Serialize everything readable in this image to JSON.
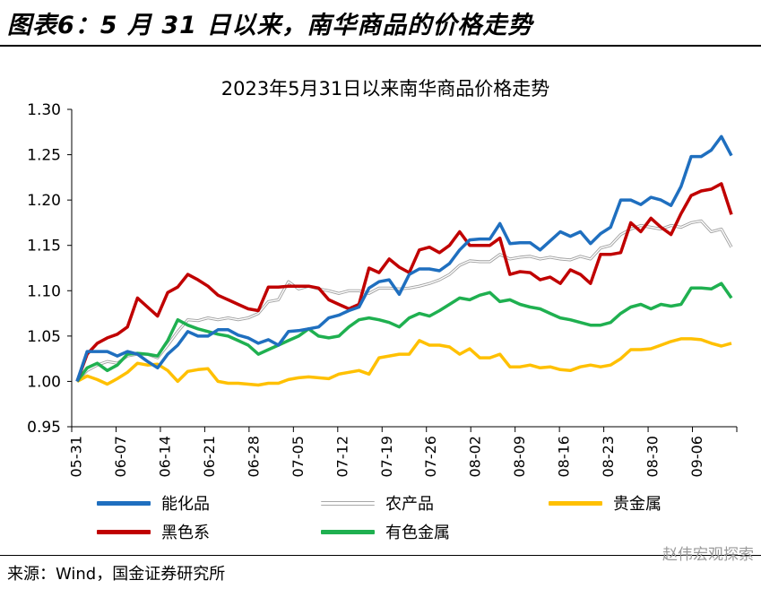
{
  "page": {
    "header_title": "图表6：5 月 31 日以来，南华商品的价格走势",
    "source": "来源：Wind，国金证券研究所",
    "watermark": "赵伟宏观探索"
  },
  "chart_data": {
    "type": "line",
    "title": "2023年5月31日以来南华商品价格走势",
    "xlabel": "",
    "ylabel": "",
    "ylim": [
      0.95,
      1.3
    ],
    "yticks": [
      "1.30",
      "1.25",
      "1.20",
      "1.15",
      "1.10",
      "1.05",
      "1.00",
      "0.95"
    ],
    "xtick_labels": [
      "05-31",
      "06-07",
      "06-14",
      "06-21",
      "06-28",
      "07-05",
      "07-12",
      "07-19",
      "07-26",
      "08-02",
      "08-09",
      "08-16",
      "08-23",
      "08-30",
      "09-06"
    ],
    "grid": false,
    "legend_position": "bottom",
    "series": [
      {
        "name": "能化品",
        "color": "#1f6fbf",
        "values": [
          1.0,
          1.033,
          1.033,
          1.033,
          1.028,
          1.033,
          1.03,
          1.022,
          1.015,
          1.03,
          1.04,
          1.055,
          1.05,
          1.05,
          1.057,
          1.057,
          1.051,
          1.048,
          1.042,
          1.046,
          1.04,
          1.055,
          1.056,
          1.058,
          1.06,
          1.07,
          1.073,
          1.078,
          1.082,
          1.103,
          1.11,
          1.112,
          1.096,
          1.118,
          1.124,
          1.124,
          1.122,
          1.13,
          1.145,
          1.156,
          1.157,
          1.157,
          1.174,
          1.152,
          1.153,
          1.153,
          1.145,
          1.155,
          1.165,
          1.16,
          1.165,
          1.152,
          1.163,
          1.17,
          1.2,
          1.2,
          1.195,
          1.203,
          1.2,
          1.194,
          1.215,
          1.248,
          1.248,
          1.255,
          1.27,
          1.249
        ]
      },
      {
        "name": "农产品",
        "color": "#bdbdbd",
        "values": [
          1.0,
          1.012,
          1.018,
          1.022,
          1.02,
          1.028,
          1.03,
          1.03,
          1.026,
          1.04,
          1.055,
          1.068,
          1.067,
          1.07,
          1.068,
          1.07,
          1.068,
          1.07,
          1.075,
          1.088,
          1.09,
          1.11,
          1.102,
          1.105,
          1.102,
          1.1,
          1.097,
          1.1,
          1.1,
          1.097,
          1.103,
          1.103,
          1.102,
          1.103,
          1.105,
          1.108,
          1.112,
          1.118,
          1.128,
          1.133,
          1.132,
          1.132,
          1.14,
          1.135,
          1.137,
          1.138,
          1.135,
          1.137,
          1.135,
          1.134,
          1.138,
          1.135,
          1.147,
          1.15,
          1.162,
          1.168,
          1.172,
          1.17,
          1.168,
          1.172,
          1.17,
          1.175,
          1.177,
          1.165,
          1.168,
          1.148
        ]
      },
      {
        "name": "贵金属",
        "color": "#ffc000",
        "values": [
          1.0,
          1.006,
          1.002,
          0.997,
          1.003,
          1.01,
          1.02,
          1.018,
          1.019,
          1.012,
          1.0,
          1.011,
          1.013,
          1.014,
          1.0,
          0.998,
          0.998,
          0.997,
          0.996,
          0.998,
          0.998,
          1.002,
          1.004,
          1.005,
          1.004,
          1.003,
          1.008,
          1.01,
          1.012,
          1.008,
          1.026,
          1.028,
          1.03,
          1.03,
          1.045,
          1.04,
          1.04,
          1.038,
          1.03,
          1.036,
          1.026,
          1.026,
          1.03,
          1.016,
          1.016,
          1.018,
          1.015,
          1.016,
          1.013,
          1.012,
          1.016,
          1.018,
          1.016,
          1.018,
          1.025,
          1.035,
          1.035,
          1.036,
          1.04,
          1.044,
          1.047,
          1.047,
          1.046,
          1.042,
          1.039,
          1.042
        ]
      },
      {
        "name": "黑色系",
        "color": "#c00000",
        "values": [
          1.0,
          1.03,
          1.042,
          1.048,
          1.052,
          1.06,
          1.092,
          1.082,
          1.072,
          1.098,
          1.104,
          1.118,
          1.112,
          1.105,
          1.095,
          1.09,
          1.085,
          1.08,
          1.078,
          1.104,
          1.104,
          1.105,
          1.105,
          1.105,
          1.103,
          1.09,
          1.085,
          1.08,
          1.085,
          1.125,
          1.12,
          1.135,
          1.126,
          1.12,
          1.145,
          1.148,
          1.142,
          1.15,
          1.165,
          1.15,
          1.15,
          1.15,
          1.158,
          1.118,
          1.121,
          1.12,
          1.112,
          1.115,
          1.108,
          1.123,
          1.118,
          1.108,
          1.14,
          1.14,
          1.142,
          1.175,
          1.165,
          1.18,
          1.17,
          1.162,
          1.185,
          1.205,
          1.21,
          1.212,
          1.218,
          1.184
        ]
      },
      {
        "name": "有色金属",
        "color": "#1fb050",
        "values": [
          1.0,
          1.015,
          1.02,
          1.012,
          1.018,
          1.03,
          1.031,
          1.03,
          1.028,
          1.045,
          1.068,
          1.062,
          1.058,
          1.055,
          1.052,
          1.05,
          1.045,
          1.04,
          1.03,
          1.035,
          1.04,
          1.045,
          1.05,
          1.058,
          1.05,
          1.048,
          1.05,
          1.06,
          1.068,
          1.07,
          1.068,
          1.065,
          1.06,
          1.07,
          1.075,
          1.072,
          1.078,
          1.085,
          1.092,
          1.09,
          1.095,
          1.098,
          1.088,
          1.09,
          1.085,
          1.082,
          1.08,
          1.075,
          1.07,
          1.068,
          1.065,
          1.062,
          1.062,
          1.065,
          1.075,
          1.082,
          1.085,
          1.08,
          1.085,
          1.083,
          1.085,
          1.103,
          1.103,
          1.102,
          1.108,
          1.092
        ]
      }
    ],
    "legend": [
      {
        "series": 0,
        "col": 0,
        "row": 0
      },
      {
        "series": 1,
        "col": 1,
        "row": 0
      },
      {
        "series": 2,
        "col": 2,
        "row": 0
      },
      {
        "series": 3,
        "col": 0,
        "row": 1
      },
      {
        "series": 4,
        "col": 1,
        "row": 1
      }
    ]
  }
}
